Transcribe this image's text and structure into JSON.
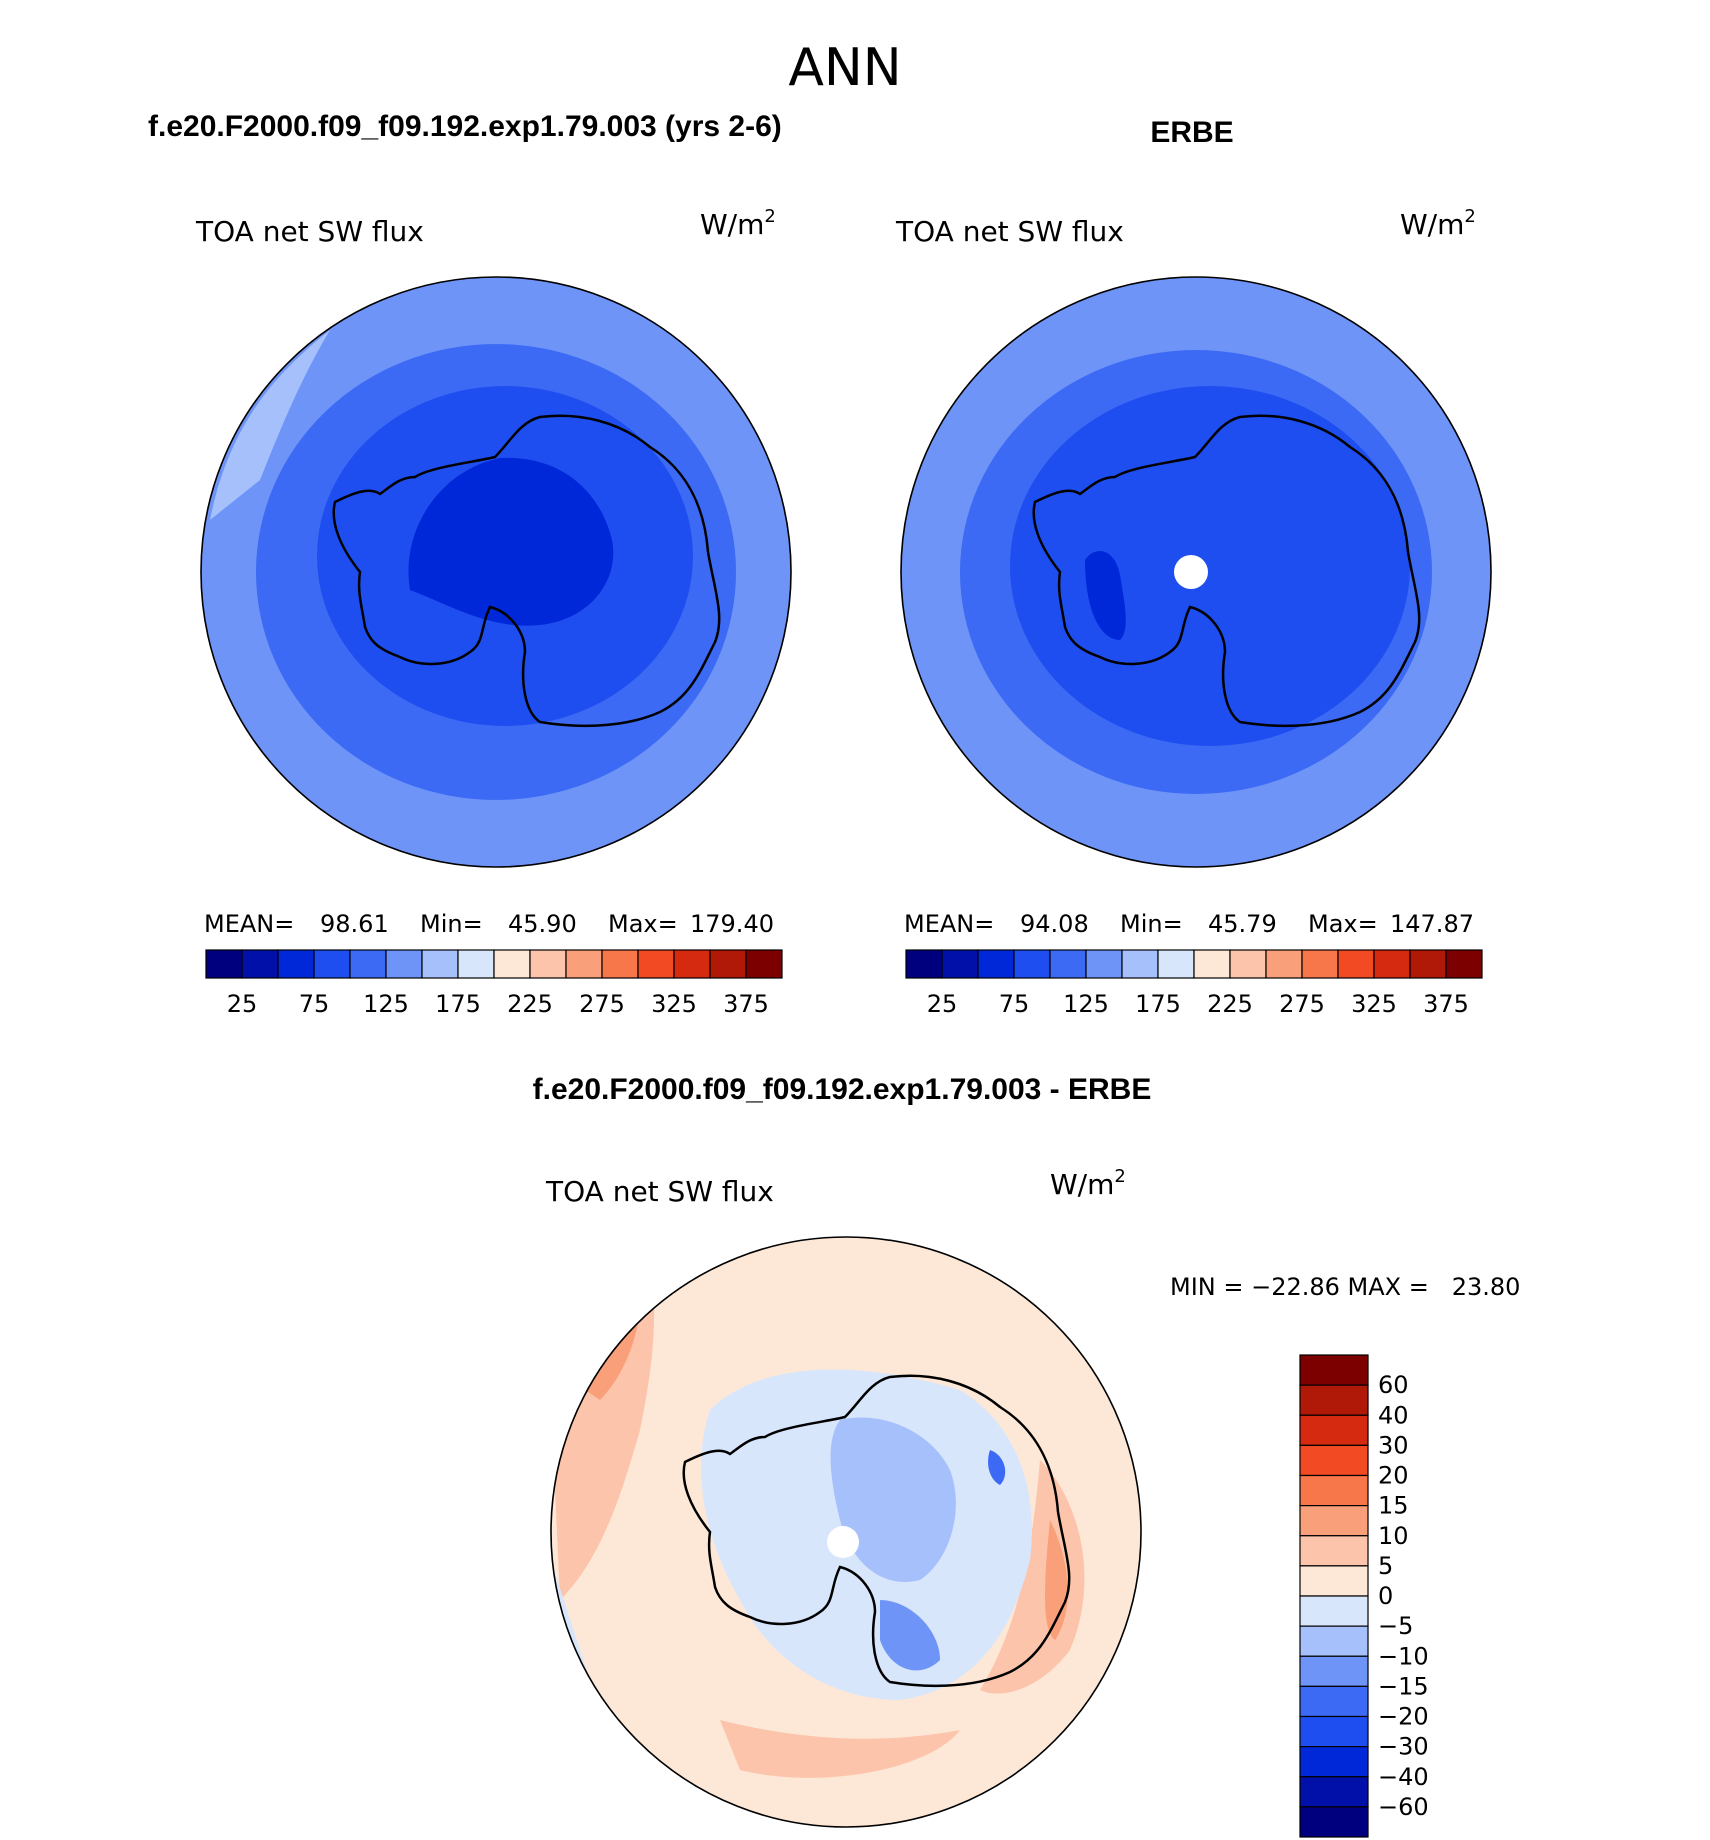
{
  "figure": {
    "season": "ANN",
    "difference_title": "f.e20.F2000.f09_f09.192.exp1.79.003 - ERBE"
  },
  "panels": [
    {
      "case_title": "f.e20.F2000.f09_f09.192.exp1.79.003 (yrs 2-6)",
      "variable": "TOA net SW flux",
      "units": "W/m",
      "units_exp": "2",
      "stats": {
        "mean_label": "MEAN=",
        "mean": "98.61",
        "min_label": "Min=",
        "min": "45.90",
        "max_label": "Max=",
        "max": "179.40"
      }
    },
    {
      "case_title": "ERBE",
      "variable": "TOA net SW flux",
      "units": "W/m",
      "units_exp": "2",
      "stats": {
        "mean_label": "MEAN=",
        "mean": "94.08",
        "min_label": "Min=",
        "min": "45.79",
        "max_label": "Max=",
        "max": "147.87"
      }
    },
    {
      "variable": "TOA net SW flux",
      "units": "W/m",
      "units_exp": "2",
      "minmax_text": "MIN = −22.86 MAX =   23.80"
    }
  ],
  "chart_data": [
    {
      "type": "heatmap",
      "projection": "south polar stereographic",
      "variable": "TOA net SW flux",
      "units": "W/m2",
      "mean": 98.61,
      "min": 45.9,
      "max": 179.4,
      "colorbar": {
        "levels": [
          25,
          50,
          75,
          100,
          125,
          150,
          175,
          200,
          225,
          250,
          275,
          300,
          325,
          350,
          375
        ],
        "tick_labels": [
          "25",
          "75",
          "125",
          "175",
          "225",
          "275",
          "325",
          "375"
        ],
        "colors": [
          "#00007f",
          "#0010a8",
          "#0028d8",
          "#1e4ef0",
          "#3c6af4",
          "#6e94f8",
          "#a6c0fc",
          "#d8e6fc",
          "#fde8d8",
          "#fcc4aa",
          "#f9a07a",
          "#f7764a",
          "#f24a22",
          "#d62a10",
          "#b01808",
          "#7c0000"
        ]
      }
    },
    {
      "type": "heatmap",
      "projection": "south polar stereographic",
      "variable": "TOA net SW flux",
      "units": "W/m2",
      "mean": 94.08,
      "min": 45.79,
      "max": 147.87,
      "colorbar": {
        "levels": [
          25,
          50,
          75,
          100,
          125,
          150,
          175,
          200,
          225,
          250,
          275,
          300,
          325,
          350,
          375
        ],
        "tick_labels": [
          "25",
          "75",
          "125",
          "175",
          "225",
          "275",
          "325",
          "375"
        ],
        "colors": [
          "#00007f",
          "#0010a8",
          "#0028d8",
          "#1e4ef0",
          "#3c6af4",
          "#6e94f8",
          "#a6c0fc",
          "#d8e6fc",
          "#fde8d8",
          "#fcc4aa",
          "#f9a07a",
          "#f7764a",
          "#f24a22",
          "#d62a10",
          "#b01808",
          "#7c0000"
        ]
      }
    },
    {
      "type": "heatmap",
      "projection": "south polar stereographic",
      "variable": "TOA net SW flux",
      "units": "W/m2",
      "min": -22.86,
      "max": 23.8,
      "colorbar": {
        "tick_labels": [
          "60",
          "40",
          "30",
          "20",
          "15",
          "10",
          "5",
          "0",
          "−5",
          "−10",
          "−15",
          "−20",
          "−30",
          "−40",
          "−60"
        ],
        "colors": [
          "#7c0000",
          "#b01808",
          "#d62a10",
          "#f24a22",
          "#f7764a",
          "#f9a07a",
          "#fcc4aa",
          "#fde8d8",
          "#d8e6fc",
          "#a6c0fc",
          "#6e94f8",
          "#3c6af4",
          "#1e4ef0",
          "#0028d8",
          "#0010a8",
          "#00007f"
        ]
      }
    }
  ]
}
